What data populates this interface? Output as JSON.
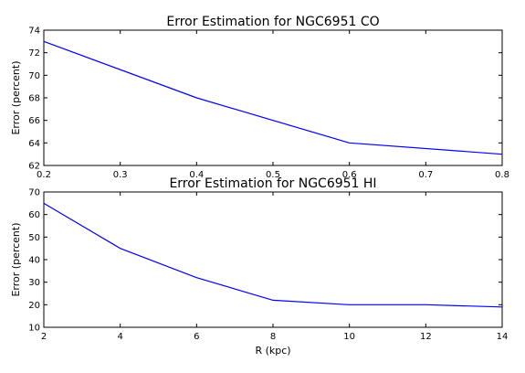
{
  "chart_data": [
    {
      "type": "line",
      "title": "Error Estimation for NGC6951 CO",
      "xlabel": "",
      "ylabel": "Error (percent)",
      "xlim": [
        0.2,
        0.8
      ],
      "ylim": [
        62,
        74
      ],
      "xticks": [
        0.2,
        0.3,
        0.4,
        0.5,
        0.6,
        0.7,
        0.8
      ],
      "yticks": [
        62,
        64,
        66,
        68,
        70,
        72,
        74
      ],
      "xtick_labels": [
        "0.2",
        "0.3",
        "0.4",
        "0.5",
        "0.6",
        "0.7",
        "0.8"
      ],
      "ytick_labels": [
        "62",
        "64",
        "66",
        "68",
        "70",
        "72",
        "74"
      ],
      "grid": false,
      "legend": "none",
      "series": [
        {
          "color": "#0000ff",
          "x": [
            0.2,
            0.4,
            0.6,
            0.8
          ],
          "y": [
            73,
            68,
            64,
            63
          ]
        }
      ]
    },
    {
      "type": "line",
      "title": "Error Estimation for NGC6951 HI",
      "xlabel": "R (kpc)",
      "ylabel": "Error (percent)",
      "xlim": [
        2,
        14
      ],
      "ylim": [
        10,
        70
      ],
      "xticks": [
        2,
        4,
        6,
        8,
        10,
        12,
        14
      ],
      "yticks": [
        10,
        20,
        30,
        40,
        50,
        60,
        70
      ],
      "xtick_labels": [
        "2",
        "4",
        "6",
        "8",
        "10",
        "12",
        "14"
      ],
      "ytick_labels": [
        "10",
        "20",
        "30",
        "40",
        "50",
        "60",
        "70"
      ],
      "grid": false,
      "legend": "none",
      "series": [
        {
          "color": "#0000ff",
          "x": [
            2,
            4,
            6,
            8,
            10,
            12,
            14
          ],
          "y": [
            65,
            45,
            32,
            22,
            20,
            20,
            19
          ]
        }
      ]
    }
  ]
}
